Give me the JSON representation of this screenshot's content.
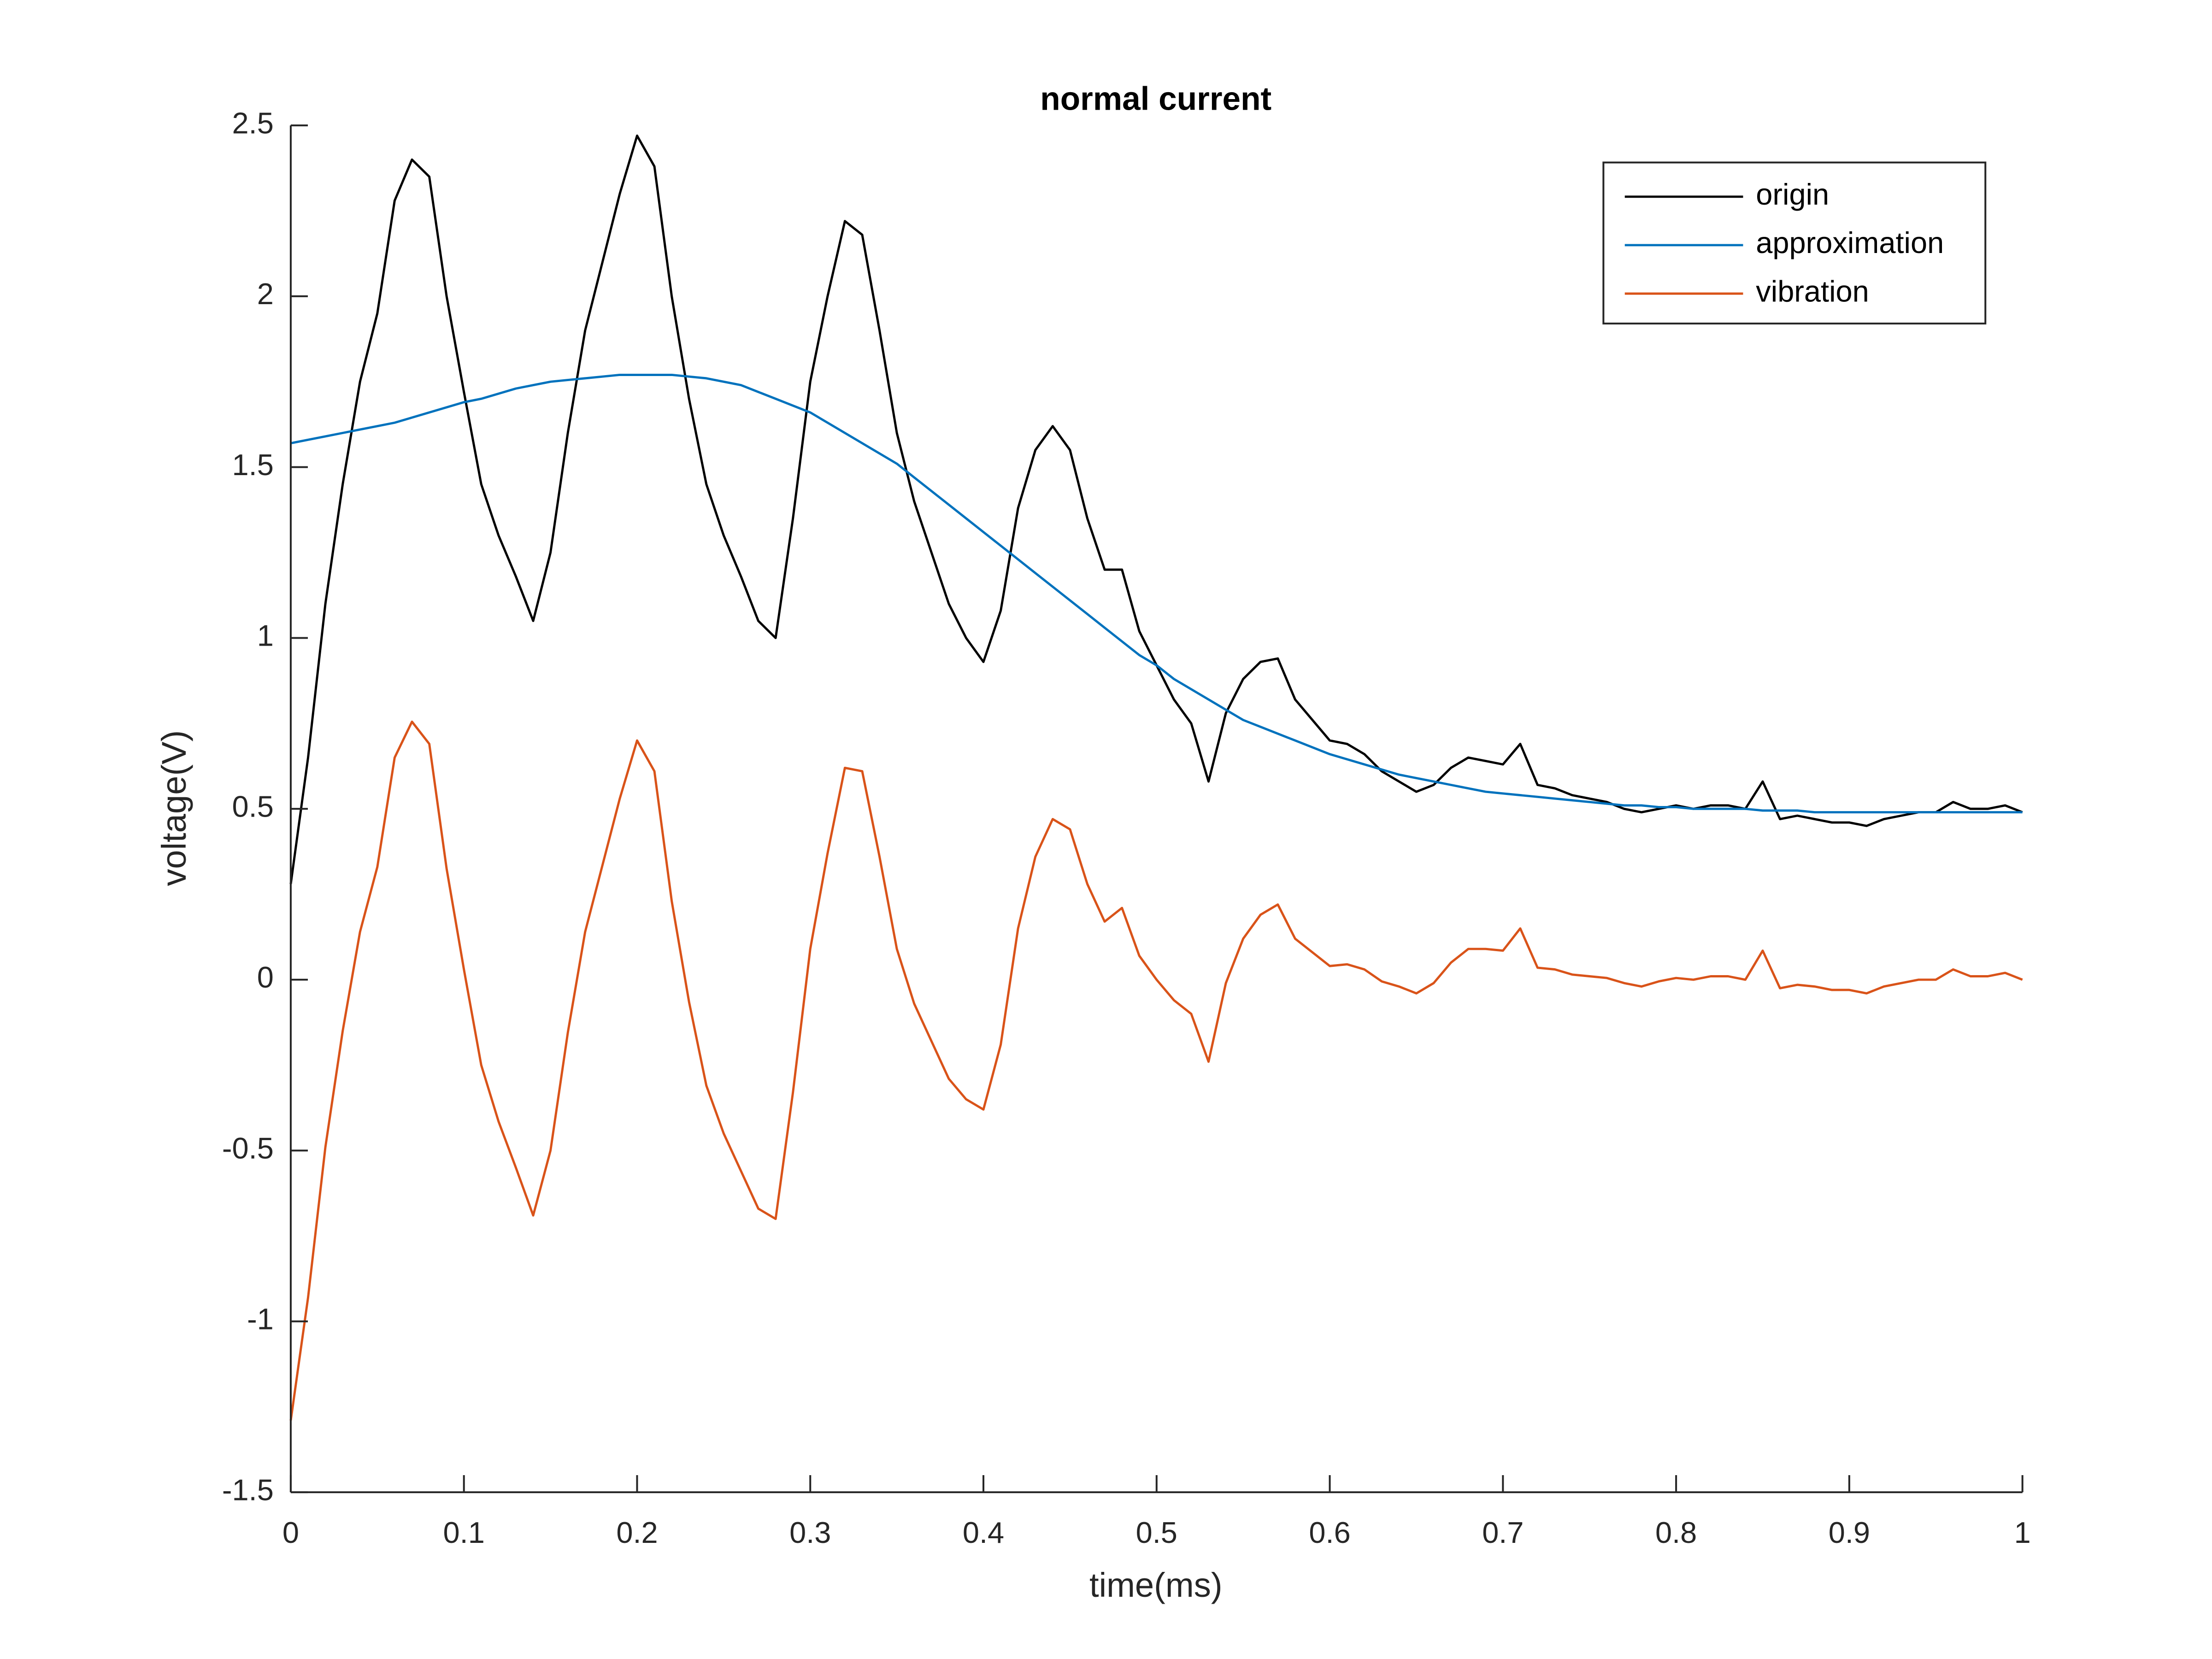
{
  "chart_data": {
    "type": "line",
    "title": "normal current",
    "x_label": "time(ms)",
    "y_label": "voltage(V)",
    "x": [
      0,
      0.01,
      0.02,
      0.03,
      0.04,
      0.05,
      0.06,
      0.07,
      0.08,
      0.09,
      0.1,
      0.11,
      0.12,
      0.13,
      0.14,
      0.15,
      0.16,
      0.17,
      0.18,
      0.19,
      0.2,
      0.21,
      0.22,
      0.23,
      0.24,
      0.25,
      0.26,
      0.27,
      0.28,
      0.29,
      0.3,
      0.31,
      0.32,
      0.33,
      0.34,
      0.35,
      0.36,
      0.37,
      0.38,
      0.39,
      0.4,
      0.41,
      0.42,
      0.43,
      0.44,
      0.45,
      0.46,
      0.47,
      0.48,
      0.49,
      0.5,
      0.51,
      0.52,
      0.53,
      0.54,
      0.55,
      0.56,
      0.57,
      0.58,
      0.59,
      0.6,
      0.61,
      0.62,
      0.63,
      0.64,
      0.65,
      0.66,
      0.67,
      0.68,
      0.69,
      0.7,
      0.71,
      0.72,
      0.73,
      0.74,
      0.75,
      0.76,
      0.77,
      0.78,
      0.79,
      0.8,
      0.81,
      0.82,
      0.83,
      0.84,
      0.85,
      0.86,
      0.87,
      0.88,
      0.89,
      0.9,
      0.91,
      0.92,
      0.93,
      0.94,
      0.95,
      0.96,
      0.97,
      0.98,
      0.99,
      1
    ],
    "series": [
      {
        "name": "origin",
        "color": "#000000",
        "values": [
          0.28,
          0.65,
          1.1,
          1.45,
          1.75,
          1.95,
          2.28,
          2.4,
          2.35,
          2.0,
          1.72,
          1.45,
          1.3,
          1.18,
          1.05,
          1.25,
          1.6,
          1.9,
          2.1,
          2.3,
          2.47,
          2.38,
          2.0,
          1.7,
          1.45,
          1.3,
          1.18,
          1.05,
          1.0,
          1.35,
          1.75,
          2.0,
          2.22,
          2.18,
          1.9,
          1.6,
          1.4,
          1.25,
          1.1,
          1.0,
          0.93,
          1.08,
          1.38,
          1.55,
          1.62,
          1.55,
          1.35,
          1.2,
          1.2,
          1.02,
          0.92,
          0.82,
          0.75,
          0.58,
          0.78,
          0.88,
          0.93,
          0.94,
          0.82,
          0.76,
          0.7,
          0.69,
          0.66,
          0.61,
          0.58,
          0.55,
          0.57,
          0.62,
          0.65,
          0.64,
          0.63,
          0.69,
          0.57,
          0.56,
          0.54,
          0.53,
          0.52,
          0.5,
          0.49,
          0.5,
          0.51,
          0.5,
          0.51,
          0.51,
          0.5,
          0.58,
          0.47,
          0.48,
          0.47,
          0.46,
          0.46,
          0.45,
          0.47,
          0.48,
          0.49,
          0.49,
          0.52,
          0.5,
          0.5,
          0.51,
          0.49
        ]
      },
      {
        "name": "approximation",
        "color": "#0072bd",
        "values": [
          1.57,
          1.58,
          1.59,
          1.6,
          1.61,
          1.62,
          1.63,
          1.645,
          1.66,
          1.675,
          1.69,
          1.7,
          1.715,
          1.73,
          1.74,
          1.75,
          1.755,
          1.76,
          1.765,
          1.77,
          1.77,
          1.77,
          1.77,
          1.765,
          1.76,
          1.75,
          1.74,
          1.72,
          1.7,
          1.68,
          1.66,
          1.63,
          1.6,
          1.57,
          1.54,
          1.51,
          1.47,
          1.43,
          1.39,
          1.35,
          1.31,
          1.27,
          1.23,
          1.19,
          1.15,
          1.11,
          1.07,
          1.03,
          0.99,
          0.95,
          0.92,
          0.88,
          0.85,
          0.82,
          0.79,
          0.76,
          0.74,
          0.72,
          0.7,
          0.68,
          0.66,
          0.645,
          0.63,
          0.615,
          0.6,
          0.59,
          0.58,
          0.57,
          0.56,
          0.55,
          0.545,
          0.54,
          0.535,
          0.53,
          0.525,
          0.52,
          0.515,
          0.51,
          0.51,
          0.505,
          0.505,
          0.5,
          0.5,
          0.5,
          0.5,
          0.495,
          0.495,
          0.495,
          0.49,
          0.49,
          0.49,
          0.49,
          0.49,
          0.49,
          0.49,
          0.49,
          0.49,
          0.49,
          0.49,
          0.49,
          0.49
        ]
      },
      {
        "name": "vibration",
        "color": "#d95319",
        "values": [
          -1.29,
          -0.93,
          -0.49,
          -0.15,
          0.14,
          0.33,
          0.65,
          0.755,
          0.69,
          0.325,
          0.03,
          -0.25,
          -0.415,
          -0.55,
          -0.69,
          -0.5,
          -0.155,
          0.14,
          0.335,
          0.53,
          0.7,
          0.61,
          0.23,
          -0.065,
          -0.31,
          -0.45,
          -0.56,
          -0.67,
          -0.7,
          -0.33,
          0.09,
          0.37,
          0.62,
          0.61,
          0.36,
          0.09,
          -0.07,
          -0.18,
          -0.29,
          -0.35,
          -0.38,
          -0.19,
          0.15,
          0.36,
          0.47,
          0.44,
          0.28,
          0.17,
          0.21,
          0.07,
          0.0,
          -0.06,
          -0.1,
          -0.24,
          -0.01,
          0.12,
          0.19,
          0.22,
          0.12,
          0.08,
          0.04,
          0.045,
          0.03,
          -0.005,
          -0.02,
          -0.04,
          -0.01,
          0.05,
          0.09,
          0.09,
          0.085,
          0.15,
          0.035,
          0.03,
          0.015,
          0.01,
          0.005,
          -0.01,
          -0.02,
          -0.005,
          0.005,
          0.0,
          0.01,
          0.01,
          0.0,
          0.085,
          -0.025,
          -0.015,
          -0.02,
          -0.03,
          -0.03,
          -0.04,
          -0.02,
          -0.01,
          0.0,
          0.0,
          0.03,
          0.01,
          0.01,
          0.02,
          0.0
        ]
      }
    ],
    "xlim": [
      0,
      1
    ],
    "xticks": [
      0,
      0.1,
      0.2,
      0.3,
      0.4,
      0.5,
      0.6,
      0.7,
      0.8,
      0.9,
      1
    ],
    "ylim": [
      -1.5,
      2.5
    ],
    "yticks": [
      -1.5,
      -1,
      -0.5,
      0,
      0.5,
      1,
      1.5,
      2,
      2.5
    ],
    "legend": "northeast",
    "grid": false
  }
}
